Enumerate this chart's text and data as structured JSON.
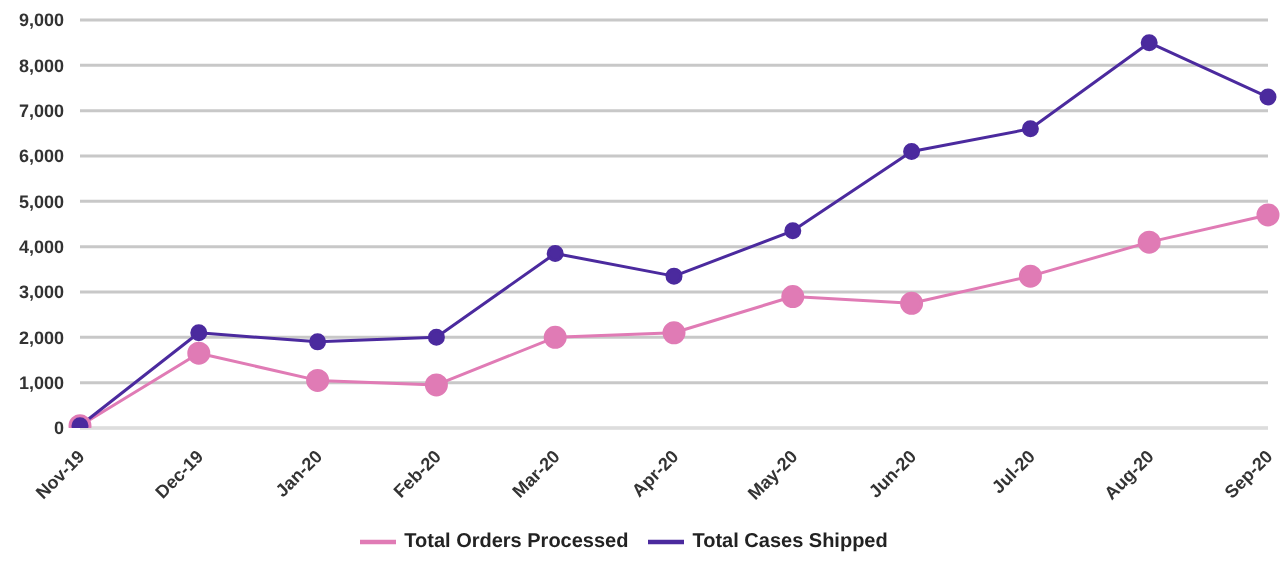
{
  "chart_data": {
    "type": "line",
    "categories": [
      "Nov-19",
      "Dec-19",
      "Jan-20",
      "Feb-20",
      "Mar-20",
      "Apr-20",
      "May-20",
      "Jun-20",
      "Jul-20",
      "Aug-20",
      "Sep-20"
    ],
    "series": [
      {
        "name": "Total Orders Processed",
        "color": "#e07bb5",
        "values": [
          50,
          1650,
          1050,
          950,
          2000,
          2100,
          2900,
          2750,
          3350,
          4100,
          4700
        ]
      },
      {
        "name": "Total Cases Shipped",
        "color": "#4b2a9e",
        "values": [
          50,
          2100,
          1900,
          2000,
          3850,
          3350,
          4350,
          6100,
          6600,
          8500,
          7300
        ]
      }
    ],
    "ylim": [
      0,
      9000
    ],
    "yticks": [
      {
        "value": 0,
        "label": "0"
      },
      {
        "value": 1000,
        "label": "1,000"
      },
      {
        "value": 2000,
        "label": "2,000"
      },
      {
        "value": 3000,
        "label": "3,000"
      },
      {
        "value": 4000,
        "label": "4,000"
      },
      {
        "value": 5000,
        "label": "5,000"
      },
      {
        "value": 6000,
        "label": "6,000"
      },
      {
        "value": 7000,
        "label": "7,000"
      },
      {
        "value": 8000,
        "label": "8,000"
      },
      {
        "value": 9000,
        "label": "9,000"
      }
    ],
    "grid": "y",
    "legend": "bottom",
    "marker": "circle",
    "line_style": "solid"
  }
}
